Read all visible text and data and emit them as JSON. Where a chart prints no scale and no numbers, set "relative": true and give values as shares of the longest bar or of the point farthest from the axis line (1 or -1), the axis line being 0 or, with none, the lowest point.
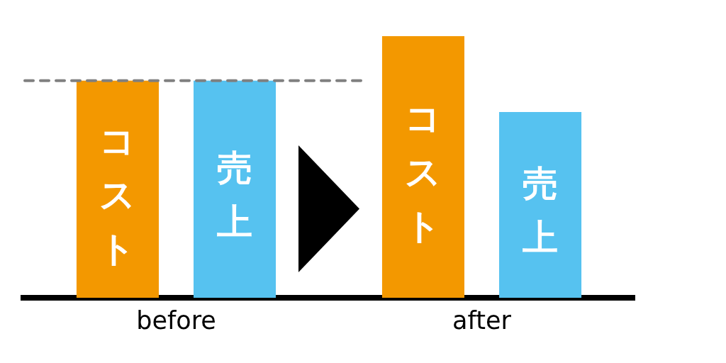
{
  "chart_data": {
    "type": "bar",
    "categories": [
      "before",
      "after"
    ],
    "series": [
      {
        "name": "コスト",
        "color": "#f39800",
        "values": [
          0.83,
          1
        ]
      },
      {
        "name": "売上",
        "color": "#56c2f0",
        "values": [
          0.83,
          0.71
        ]
      }
    ],
    "relative": true,
    "ref_lines": [
      {
        "axis": "y",
        "value": 0.83,
        "color": "#808080",
        "line_style": "dashed"
      }
    ]
  }
}
